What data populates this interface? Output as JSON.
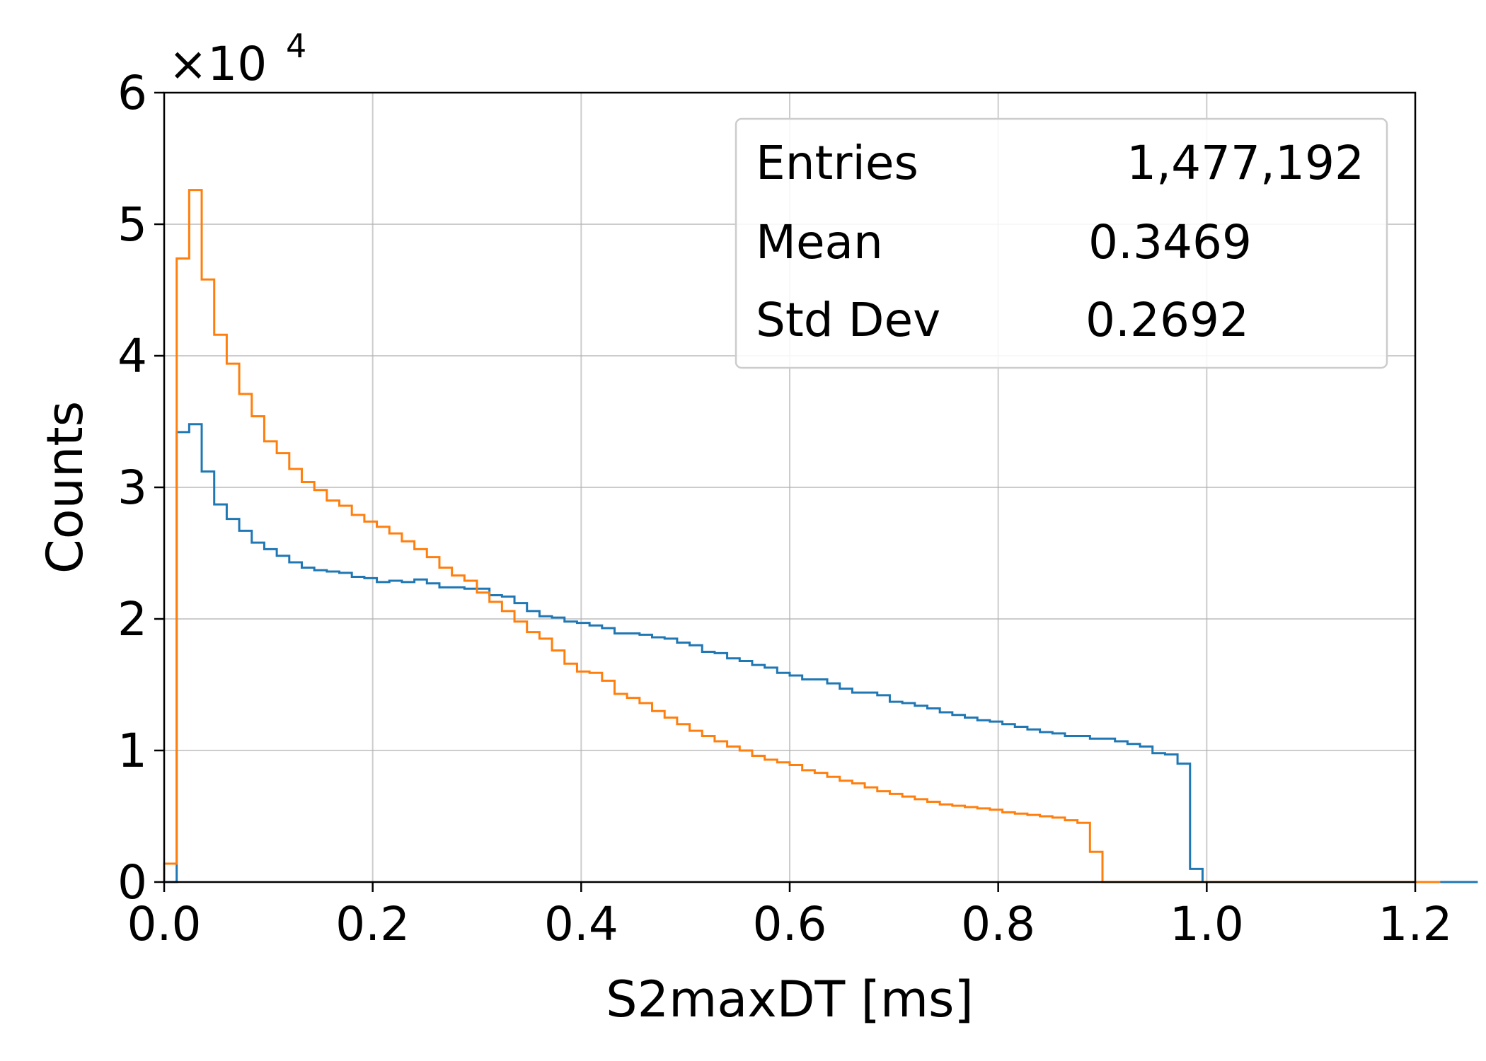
{
  "chart_data": {
    "type": "step-histogram",
    "xlabel": "S2maxDT [ms]",
    "ylabel": "Counts",
    "xlim": [
      0.0,
      1.2
    ],
    "ylim": [
      0,
      60000
    ],
    "x_ticks": [
      "0.0",
      "0.2",
      "0.4",
      "0.6",
      "0.8",
      "1.0",
      "1.2"
    ],
    "y_ticks": [
      "0",
      "1",
      "2",
      "3",
      "4",
      "5",
      "6"
    ],
    "y_multiplier": "×10",
    "y_multiplier_exponent": "4",
    "grid": true,
    "bin_width": 0.012,
    "bin_start": 0.0,
    "series": [
      {
        "color": "#1f77b4",
        "values": [
          0,
          34200,
          34800,
          31200,
          28700,
          27600,
          26700,
          25800,
          25300,
          24800,
          24300,
          23900,
          23700,
          23600,
          23500,
          23200,
          23100,
          22800,
          22900,
          22800,
          23000,
          22700,
          22400,
          22400,
          22300,
          22300,
          21800,
          21700,
          21200,
          20600,
          20200,
          20100,
          19800,
          19700,
          19500,
          19300,
          18900,
          18900,
          18800,
          18600,
          18500,
          18200,
          18000,
          17500,
          17400,
          17000,
          16800,
          16500,
          16300,
          15900,
          15700,
          15400,
          15400,
          15100,
          14700,
          14400,
          14400,
          14200,
          13700,
          13600,
          13400,
          13200,
          12900,
          12700,
          12500,
          12300,
          12200,
          12000,
          11800,
          11600,
          11400,
          11300,
          11100,
          11100,
          10900,
          10900,
          10700,
          10500,
          10300,
          9800,
          9700,
          9000,
          1000,
          0,
          0,
          0,
          0,
          0,
          0,
          0,
          0,
          0,
          0,
          0,
          0,
          0,
          0,
          0,
          0,
          0,
          0,
          0,
          0,
          0,
          0
        ]
      },
      {
        "color": "#ff7f0e",
        "values": [
          1400,
          47400,
          52600,
          45800,
          41600,
          39400,
          37100,
          35400,
          33500,
          32600,
          31400,
          30400,
          29800,
          29000,
          28600,
          27900,
          27400,
          27000,
          26500,
          25900,
          25300,
          24700,
          23900,
          23300,
          22900,
          22000,
          21300,
          20600,
          19800,
          19000,
          18500,
          17600,
          16600,
          16000,
          15900,
          15300,
          14300,
          14000,
          13600,
          13000,
          12500,
          12000,
          11500,
          11100,
          10700,
          10300,
          10000,
          9600,
          9300,
          9100,
          8900,
          8500,
          8300,
          8000,
          7700,
          7500,
          7200,
          6900,
          6700,
          6500,
          6300,
          6100,
          5900,
          5800,
          5700,
          5600,
          5500,
          5300,
          5200,
          5100,
          5000,
          4900,
          4700,
          4500,
          2300,
          0,
          0,
          0,
          0,
          0,
          0,
          0,
          0,
          0,
          0,
          0,
          0,
          0,
          0,
          0,
          0,
          0,
          0,
          0,
          0,
          0,
          0,
          0,
          0,
          0,
          0,
          0
        ]
      }
    ],
    "stats_box": {
      "position": "top-right",
      "rows": [
        {
          "label": "Entries",
          "value": "1,477,192"
        },
        {
          "label": "Mean",
          "value": "0.3469"
        },
        {
          "label": "Std Dev",
          "value": "0.2692"
        }
      ]
    }
  }
}
